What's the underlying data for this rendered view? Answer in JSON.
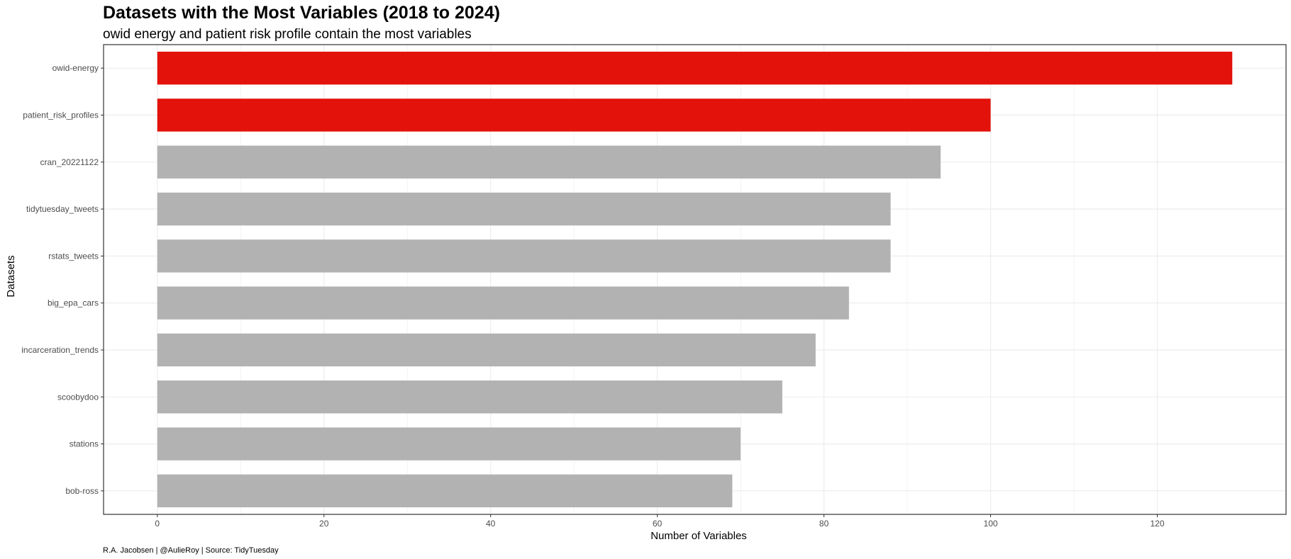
{
  "chart_data": {
    "type": "bar",
    "orientation": "horizontal",
    "title": "Datasets with the Most Variables (2018 to 2024)",
    "subtitle": "owid energy and patient risk profile contain the most variables",
    "xlabel": "Number of Variables",
    "ylabel": "Datasets",
    "caption": "R.A. Jacobsen | @AulieRoy | Source: TidyTuesday",
    "categories": [
      "owid-energy",
      "patient_risk_profiles",
      "cran_20221122",
      "tidytuesday_tweets",
      "rstats_tweets",
      "big_epa_cars",
      "incarceration_trends",
      "scoobydoo",
      "stations",
      "bob-ross"
    ],
    "values": [
      129,
      100,
      94,
      88,
      88,
      83,
      79,
      75,
      70,
      69
    ],
    "highlight": [
      true,
      true,
      false,
      false,
      false,
      false,
      false,
      false,
      false,
      false
    ],
    "xlim": [
      -6.45,
      135.45
    ],
    "xticks": [
      0,
      20,
      40,
      60,
      80,
      100,
      120
    ],
    "xtick_labels": [
      "0",
      "20",
      "40",
      "60",
      "80",
      "100",
      "120"
    ],
    "grid": true,
    "colors": {
      "highlight": "#e3120b",
      "default": "#b2b2b2",
      "grid": "#ebebeb",
      "panel_border": "#333333"
    }
  }
}
